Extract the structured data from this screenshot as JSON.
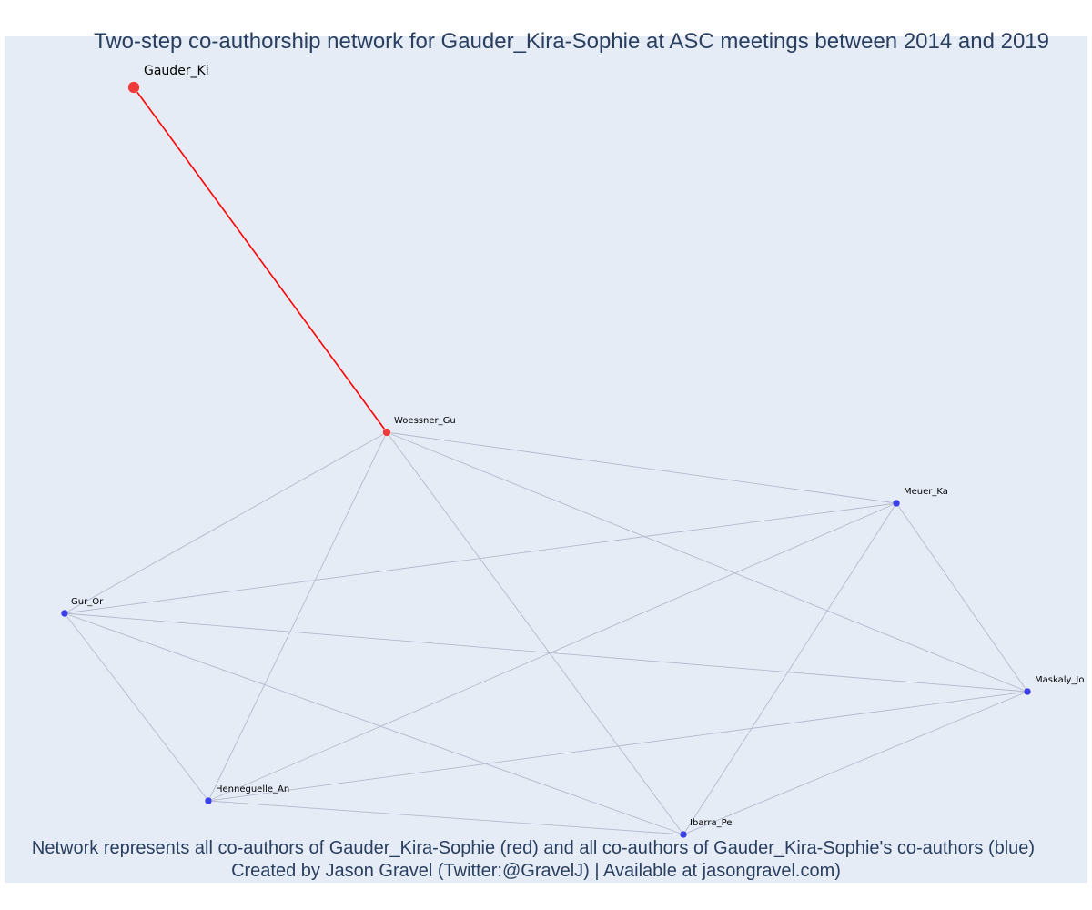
{
  "title": "Two-step co-authorship network for Gauder_Kira-Sophie at ASC meetings between 2014 and 2019",
  "caption_line1": "Network represents all co-authors of Gauder_Kira-Sophie (red) and all co-authors of Gauder_Kira-Sophie's co-authors (blue)",
  "caption_line2": "Created by Jason Gravel (Twitter:@GravelJ) | Available at jasongravel.com)",
  "colors": {
    "background": "#e5ecf6",
    "focal_edge": "#ff0000",
    "other_edge": "#b5b9cc",
    "red_node": "#ef3b3b",
    "blue_node": "#3b3fe8",
    "title_text": "#2a3f5f"
  },
  "nodes": [
    {
      "id": "Gauder_Ki",
      "label": "Gauder_Ki",
      "group": "focal"
    },
    {
      "id": "Woessner_Gu",
      "label": "Woessner_Gu",
      "group": "red"
    },
    {
      "id": "Meuer_Ka",
      "label": "Meuer_Ka",
      "group": "blue"
    },
    {
      "id": "Gur_Or",
      "label": "Gur_Or",
      "group": "blue"
    },
    {
      "id": "Maskaly_Jo",
      "label": "Maskaly_Jo",
      "group": "blue"
    },
    {
      "id": "Henneguelle_An",
      "label": "Henneguelle_An",
      "group": "blue"
    },
    {
      "id": "Ibarra_Pe",
      "label": "Ibarra_Pe",
      "group": "blue"
    }
  ],
  "edges": [
    {
      "source": "Gauder_Ki",
      "target": "Woessner_Gu",
      "type": "focal"
    },
    {
      "source": "Woessner_Gu",
      "target": "Meuer_Ka",
      "type": "other"
    },
    {
      "source": "Woessner_Gu",
      "target": "Gur_Or",
      "type": "other"
    },
    {
      "source": "Woessner_Gu",
      "target": "Maskaly_Jo",
      "type": "other"
    },
    {
      "source": "Woessner_Gu",
      "target": "Henneguelle_An",
      "type": "other"
    },
    {
      "source": "Woessner_Gu",
      "target": "Ibarra_Pe",
      "type": "other"
    },
    {
      "source": "Meuer_Ka",
      "target": "Gur_Or",
      "type": "other"
    },
    {
      "source": "Meuer_Ka",
      "target": "Maskaly_Jo",
      "type": "other"
    },
    {
      "source": "Meuer_Ka",
      "target": "Henneguelle_An",
      "type": "other"
    },
    {
      "source": "Meuer_Ka",
      "target": "Ibarra_Pe",
      "type": "other"
    },
    {
      "source": "Gur_Or",
      "target": "Maskaly_Jo",
      "type": "other"
    },
    {
      "source": "Gur_Or",
      "target": "Henneguelle_An",
      "type": "other"
    },
    {
      "source": "Gur_Or",
      "target": "Ibarra_Pe",
      "type": "other"
    },
    {
      "source": "Maskaly_Jo",
      "target": "Henneguelle_An",
      "type": "other"
    },
    {
      "source": "Maskaly_Jo",
      "target": "Ibarra_Pe",
      "type": "other"
    },
    {
      "source": "Henneguelle_An",
      "target": "Ibarra_Pe",
      "type": "other"
    }
  ]
}
